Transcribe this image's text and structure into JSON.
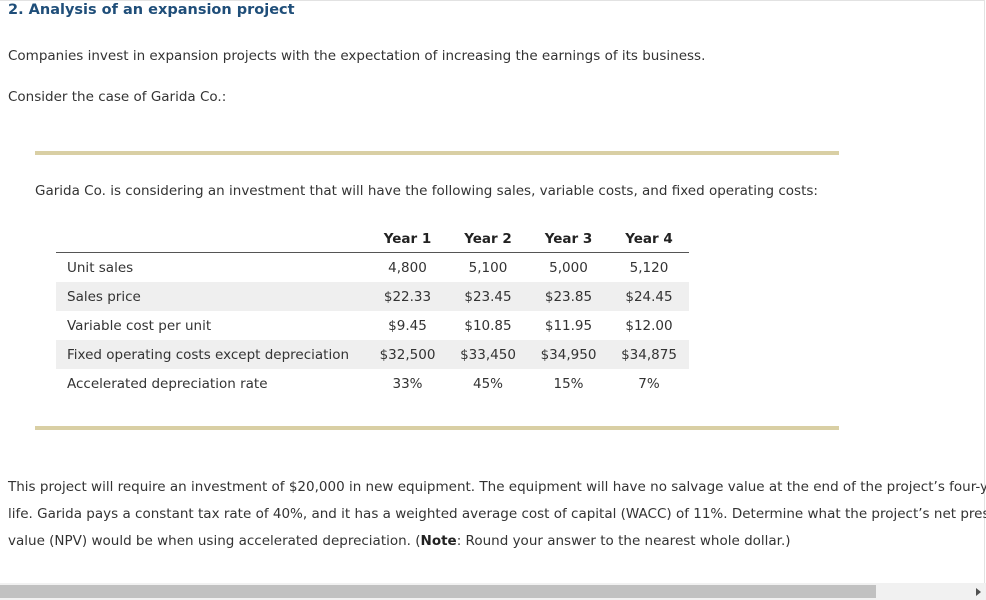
{
  "heading": "2. Analysis of an expansion project",
  "paragraphs": {
    "p1": "Companies invest in expansion projects with the expectation of increasing the earnings of its business.",
    "p2": "Consider the case of Garida Co.:"
  },
  "intro": "Garida Co. is considering an investment that will have the following sales, variable costs, and fixed operating costs:",
  "table": {
    "headers": [
      "Year 1",
      "Year 2",
      "Year 3",
      "Year 4"
    ],
    "rows": [
      {
        "label": "Unit sales",
        "values": [
          "4,800",
          "5,100",
          "5,000",
          "5,120"
        ]
      },
      {
        "label": "Sales price",
        "values": [
          "$22.33",
          "$23.45",
          "$23.85",
          "$24.45"
        ]
      },
      {
        "label": "Variable cost per unit",
        "values": [
          "$9.45",
          "$10.85",
          "$11.95",
          "$12.00"
        ]
      },
      {
        "label": "Fixed operating costs except depreciation",
        "values": [
          "$32,500",
          "$33,450",
          "$34,950",
          "$34,875"
        ]
      },
      {
        "label": "Accelerated depreciation rate",
        "values": [
          "33%",
          "45%",
          "15%",
          "7%"
        ]
      }
    ]
  },
  "problem": {
    "text": "This project will require an investment of $20,000 in new equipment. The equipment will have no salvage value at the end of the project’s four-year life. Garida pays a constant tax rate of 40%, and it has a weighted average cost of capital (WACC) of 11%. Determine what the project’s net present value (NPV) would be when using accelerated depreciation. (",
    "note_label": "Note",
    "note_text": ": Round your answer to the nearest whole dollar.)"
  },
  "colors": {
    "heading": "#1f4e79",
    "rule": "#d9cfa4",
    "row_shade": "#efefef"
  }
}
